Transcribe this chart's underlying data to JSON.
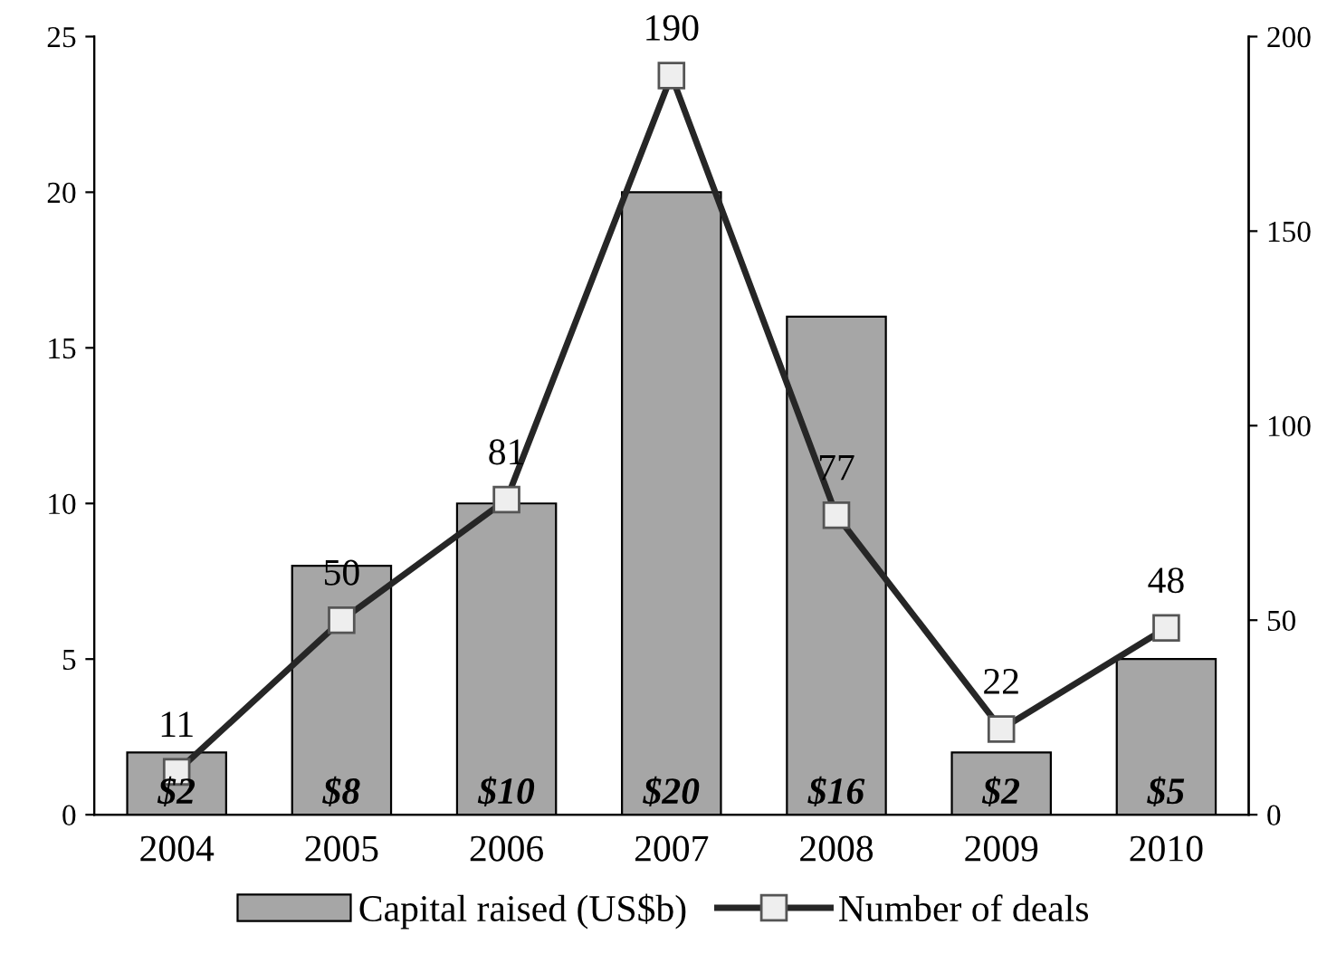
{
  "chart_data": {
    "type": "bar",
    "categories": [
      "2004",
      "2005",
      "2006",
      "2007",
      "2008",
      "2009",
      "2010"
    ],
    "series": [
      {
        "name": "Capital raised (US$b)",
        "color": "#a6a6a6",
        "values": [
          2,
          8,
          10,
          20,
          16,
          2,
          5
        ],
        "value_labels": [
          "$2",
          "$8",
          "$10",
          "$20",
          "$16",
          "$2",
          "$5"
        ]
      },
      {
        "name": "Number of deals",
        "type": "line",
        "axis": "y2",
        "color": "#262626",
        "values": [
          11,
          50,
          81,
          190,
          77,
          22,
          48
        ],
        "data_labels": true,
        "marker": "square"
      }
    ],
    "ylim": [
      0,
      25
    ],
    "yticks": [
      0,
      5,
      10,
      15,
      20,
      25
    ],
    "y2lim": [
      0,
      200
    ],
    "y2ticks": [
      0,
      50,
      100,
      150,
      200
    ],
    "grid": false,
    "legend": "bottom"
  }
}
